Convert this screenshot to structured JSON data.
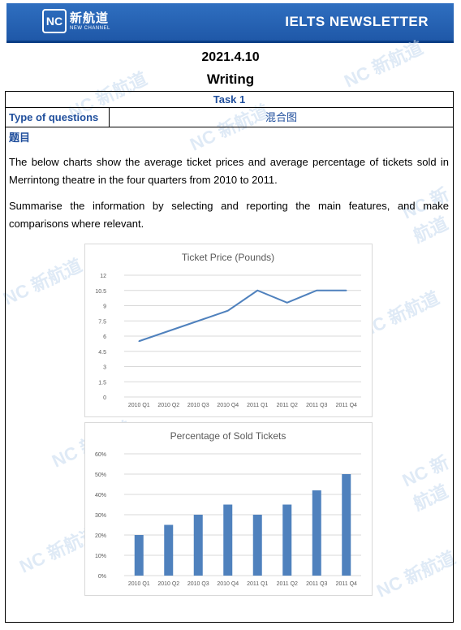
{
  "header": {
    "logo_mark": "NC",
    "logo_cn": "新航道",
    "logo_en": "NEW CHANNEL",
    "newsletter": "IELTS NEWSLETTER"
  },
  "doc": {
    "date": "2021.4.10",
    "subject": "Writing",
    "task": "Task 1",
    "type_label": "Type of questions",
    "type_value": "混合图",
    "question_label": "题目",
    "para1": "The below charts show the average ticket prices and average percentage of tickets sold in Merrintong theatre in the four quarters from 2010 to 2011.",
    "para2": "Summarise the information by selecting and reporting the main features, and make comparisons where relevant."
  },
  "chart_data": [
    {
      "type": "line",
      "title": "Ticket Price (Pounds)",
      "categories": [
        "2010 Q1",
        "2010 Q2",
        "2010 Q3",
        "2010 Q4",
        "2011 Q1",
        "2011 Q2",
        "2011 Q3",
        "2011 Q4"
      ],
      "values": [
        5.5,
        6.5,
        7.5,
        8.5,
        10.5,
        9.3,
        10.5,
        10.5
      ],
      "yticks": [
        "0",
        "1.5",
        "3",
        "4.5",
        "6",
        "7.5",
        "9",
        "10.5",
        "12"
      ],
      "ylim": [
        0,
        12
      ],
      "grid": true,
      "color": "#4f81bd"
    },
    {
      "type": "bar",
      "title": "Percentage of Sold Tickets",
      "categories": [
        "2010 Q1",
        "2010 Q2",
        "2010 Q3",
        "2010 Q4",
        "2011 Q1",
        "2011 Q2",
        "2011 Q3",
        "2011 Q4"
      ],
      "values": [
        20,
        25,
        30,
        35,
        30,
        35,
        42,
        50
      ],
      "yticks": [
        "0%",
        "10%",
        "20%",
        "30%",
        "40%",
        "50%",
        "60%"
      ],
      "ylim": [
        0,
        60
      ],
      "grid": true,
      "color": "#4f81bd"
    }
  ]
}
